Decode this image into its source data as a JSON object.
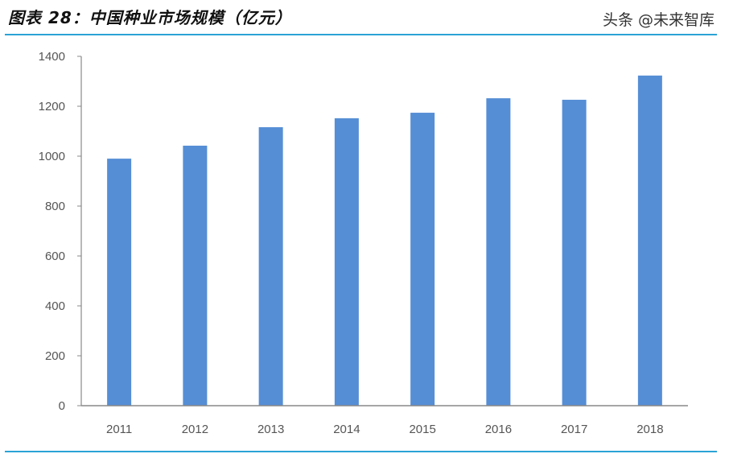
{
  "title": "图表 28：中国种业市场规模（亿元）",
  "watermark": "头条 @未来智库",
  "chart_data": {
    "type": "bar",
    "title": "图表 28：中国种业市场规模（亿元）",
    "categories": [
      "2011",
      "2012",
      "2013",
      "2014",
      "2015",
      "2016",
      "2017",
      "2018"
    ],
    "values": [
      990,
      1042,
      1116,
      1152,
      1174,
      1232,
      1226,
      1323
    ],
    "ylim": [
      0,
      1400
    ],
    "yticks": [
      0,
      200,
      400,
      600,
      800,
      1000,
      1200,
      1400
    ],
    "grid": false,
    "bar_color": "#558ed5",
    "xlabel": "",
    "ylabel": ""
  }
}
